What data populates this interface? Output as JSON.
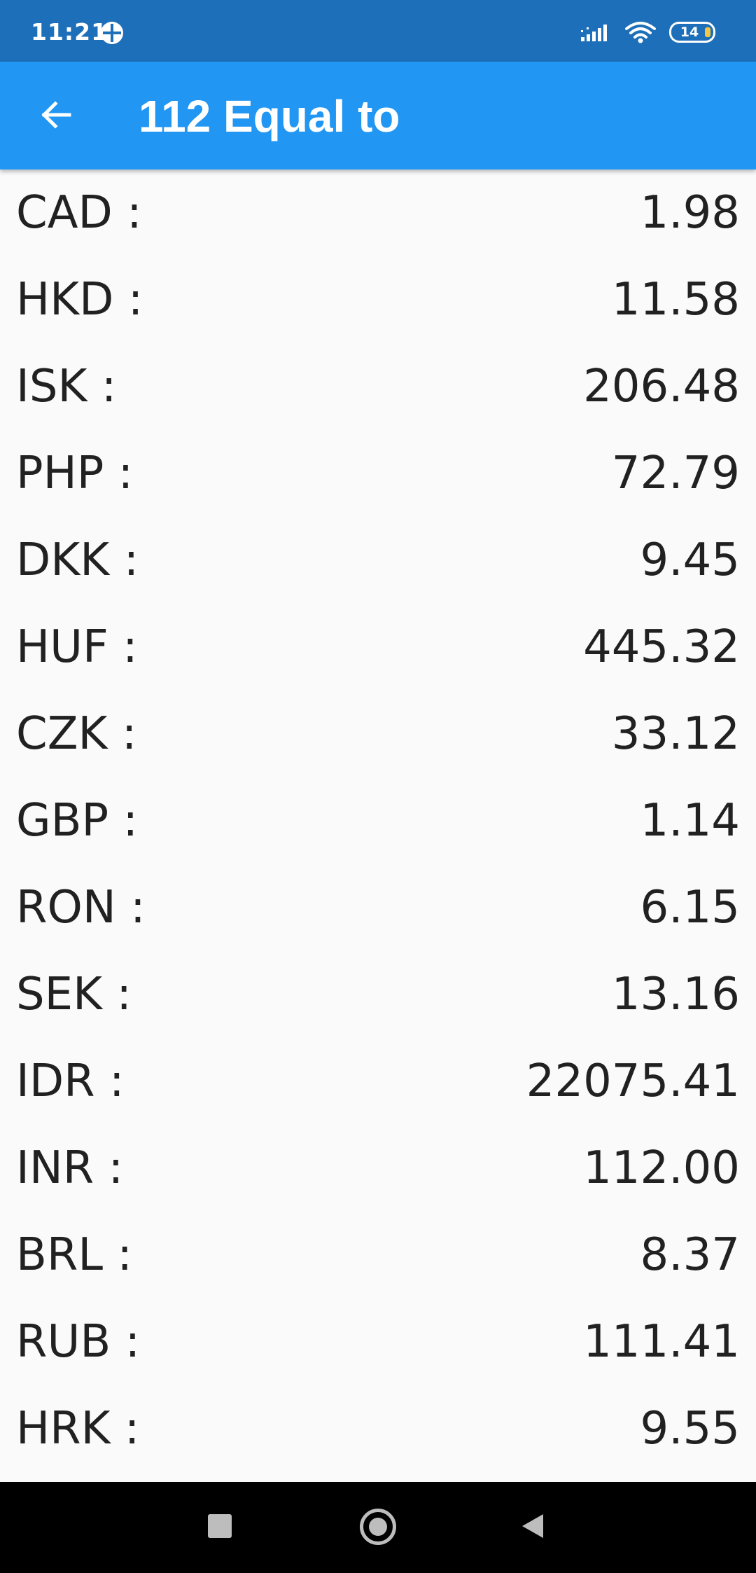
{
  "status_bar": {
    "time": "11:21",
    "battery_level": "14",
    "background_color": "#1c6fb8",
    "icons": [
      "app-notification-icon",
      "signal-icon",
      "wifi-icon",
      "battery-icon"
    ]
  },
  "app_bar": {
    "title": "112 Equal to",
    "back_icon": "arrow-back-icon",
    "background_color": "#2196f3"
  },
  "rates": [
    {
      "code": "CAD :",
      "value": "1.98"
    },
    {
      "code": "HKD :",
      "value": "11.58"
    },
    {
      "code": "ISK :",
      "value": "206.48"
    },
    {
      "code": "PHP :",
      "value": "72.79"
    },
    {
      "code": "DKK :",
      "value": "9.45"
    },
    {
      "code": "HUF :",
      "value": "445.32"
    },
    {
      "code": "CZK :",
      "value": "33.12"
    },
    {
      "code": "GBP :",
      "value": "1.14"
    },
    {
      "code": "RON :",
      "value": "6.15"
    },
    {
      "code": "SEK :",
      "value": "13.16"
    },
    {
      "code": "IDR :",
      "value": "22075.41"
    },
    {
      "code": "INR :",
      "value": "112.00"
    },
    {
      "code": "BRL :",
      "value": "8.37"
    },
    {
      "code": "RUB :",
      "value": "111.41"
    },
    {
      "code": "HRK :",
      "value": "9.55"
    }
  ],
  "nav_bar": {
    "icons": [
      "recents-square-icon",
      "home-circle-icon",
      "back-triangle-icon"
    ]
  }
}
